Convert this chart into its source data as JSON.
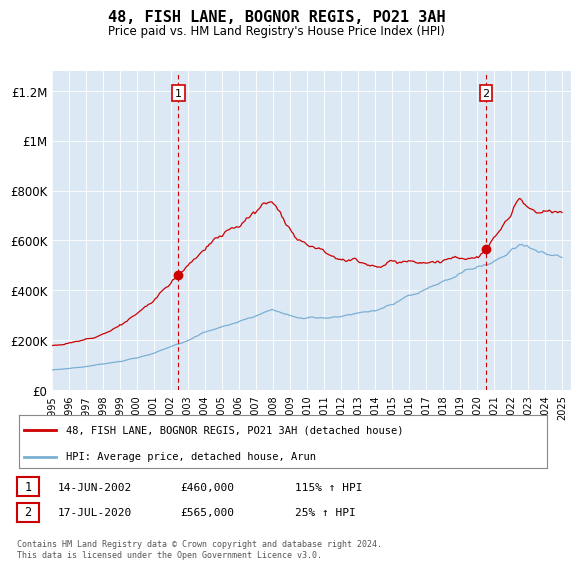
{
  "title": "48, FISH LANE, BOGNOR REGIS, PO21 3AH",
  "subtitle": "Price paid vs. HM Land Registry's House Price Index (HPI)",
  "ylabel_ticks": [
    0,
    200000,
    400000,
    600000,
    800000,
    1000000,
    1200000
  ],
  "ylabel_labels": [
    "£0",
    "£200K",
    "£400K",
    "£600K",
    "£800K",
    "£1M",
    "£1.2M"
  ],
  "xlim_start": 1995.0,
  "xlim_end": 2025.5,
  "ylim": [
    0,
    1280000
  ],
  "background_color": "#dce9f5",
  "red_line_color": "#cc0000",
  "blue_line_color": "#7bafd4",
  "vline_color": "#cc0000",
  "transaction1_year": 2002.45,
  "transaction1_price": 460000,
  "transaction2_year": 2020.54,
  "transaction2_price": 565000,
  "legend_line1": "48, FISH LANE, BOGNOR REGIS, PO21 3AH (detached house)",
  "legend_line2": "HPI: Average price, detached house, Arun",
  "t1_date": "14-JUN-2002",
  "t1_price_str": "£460,000",
  "t1_pct": "115% ↑ HPI",
  "t2_date": "17-JUL-2020",
  "t2_price_str": "£565,000",
  "t2_pct": "25% ↑ HPI",
  "footer": "Contains HM Land Registry data © Crown copyright and database right 2024.\nThis data is licensed under the Open Government Licence v3.0."
}
